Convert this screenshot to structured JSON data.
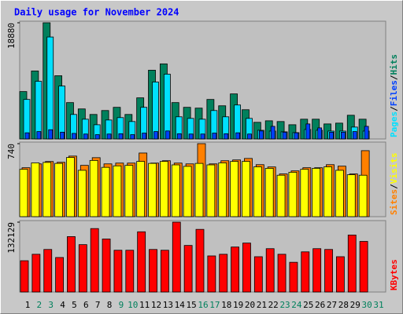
{
  "chart_data": [
    {
      "type": "bar",
      "title": "Daily usage for November 2024",
      "ylim": [
        0,
        18880
      ],
      "yticks": [
        18880
      ],
      "legend_separator": "/",
      "series": [
        {
          "name": "Pages",
          "color": "#00e0ff",
          "values": [
            6420,
            9370,
            16570,
            8600,
            3980,
            3210,
            2310,
            3080,
            3470,
            2830,
            5140,
            9250,
            10530,
            3600,
            3340,
            3210,
            4620,
            3600,
            5520,
            3340,
            1410,
            1280,
            1160,
            1030,
            1540,
            1410,
            1280,
            1280,
            1930,
            1280,
            0
          ]
        },
        {
          "name": "Files",
          "color": "#0040ff",
          "values": [
            1000,
            1200,
            1500,
            1100,
            900,
            800,
            700,
            800,
            850,
            700,
            950,
            1200,
            1300,
            850,
            800,
            800,
            950,
            850,
            1000,
            800,
            1300,
            2050,
            1100,
            1000,
            2440,
            1800,
            1100,
            1100,
            1200,
            2050,
            0
          ]
        },
        {
          "name": "Hits",
          "color": "#00805c",
          "values": [
            7700,
            11050,
            18880,
            10270,
            5910,
            4880,
            3980,
            4620,
            5140,
            3980,
            6680,
            11170,
            12200,
            5910,
            5140,
            5010,
            6420,
            5390,
            7320,
            4750,
            2700,
            2950,
            2830,
            2310,
            3210,
            3210,
            2440,
            2570,
            3850,
            3210,
            0
          ]
        }
      ]
    },
    {
      "type": "bar",
      "ylim": [
        0,
        740
      ],
      "yticks": [
        740
      ],
      "legend_separator": "/",
      "series": [
        {
          "name": "Sites",
          "color": "#ff8000",
          "values": [
            496,
            535,
            559,
            551,
            614,
            520,
            598,
            535,
            543,
            543,
            645,
            543,
            567,
            543,
            535,
            740,
            535,
            567,
            575,
            590,
            527,
            504,
            433,
            464,
            496,
            496,
            527,
            512,
            433,
            669,
            0
          ]
        },
        {
          "name": "Visits",
          "color": "#ffff00",
          "values": [
            480,
            545,
            550,
            540,
            600,
            470,
            570,
            500,
            515,
            520,
            560,
            540,
            560,
            525,
            510,
            540,
            525,
            545,
            560,
            560,
            505,
            490,
            420,
            450,
            480,
            490,
            505,
            470,
            425,
            420,
            0
          ]
        }
      ]
    },
    {
      "type": "bar",
      "ylim": [
        0,
        132129
      ],
      "yticks": [
        132129
      ],
      "categories": [
        "1",
        "2",
        "3",
        "4",
        "5",
        "6",
        "7",
        "8",
        "9",
        "10",
        "11",
        "12",
        "13",
        "14",
        "15",
        "16",
        "17",
        "18",
        "19",
        "20",
        "21",
        "22",
        "23",
        "24",
        "25",
        "26",
        "27",
        "28",
        "29",
        "30",
        "31"
      ],
      "category_colors": [
        "#000000",
        "#00805c",
        "#00805c",
        "#000000",
        "#000000",
        "#000000",
        "#000000",
        "#000000",
        "#00805c",
        "#00805c",
        "#000000",
        "#000000",
        "#000000",
        "#000000",
        "#000000",
        "#00805c",
        "#00805c",
        "#000000",
        "#000000",
        "#000000",
        "#000000",
        "#000000",
        "#00805c",
        "#00805c",
        "#000000",
        "#000000",
        "#000000",
        "#000000",
        "#000000",
        "#00805c",
        "#00805c"
      ],
      "series": [
        {
          "name": "KBytes",
          "color": "#ff0000",
          "values": [
            59200,
            71400,
            80500,
            65300,
            104800,
            89600,
            120000,
            100300,
            79000,
            79000,
            113900,
            80500,
            79000,
            132129,
            88100,
            118500,
            68300,
            71400,
            85100,
            92600,
            66800,
            82000,
            71400,
            56200,
            76000,
            82000,
            80500,
            66800,
            107800,
            95700,
            0
          ]
        }
      ]
    }
  ]
}
